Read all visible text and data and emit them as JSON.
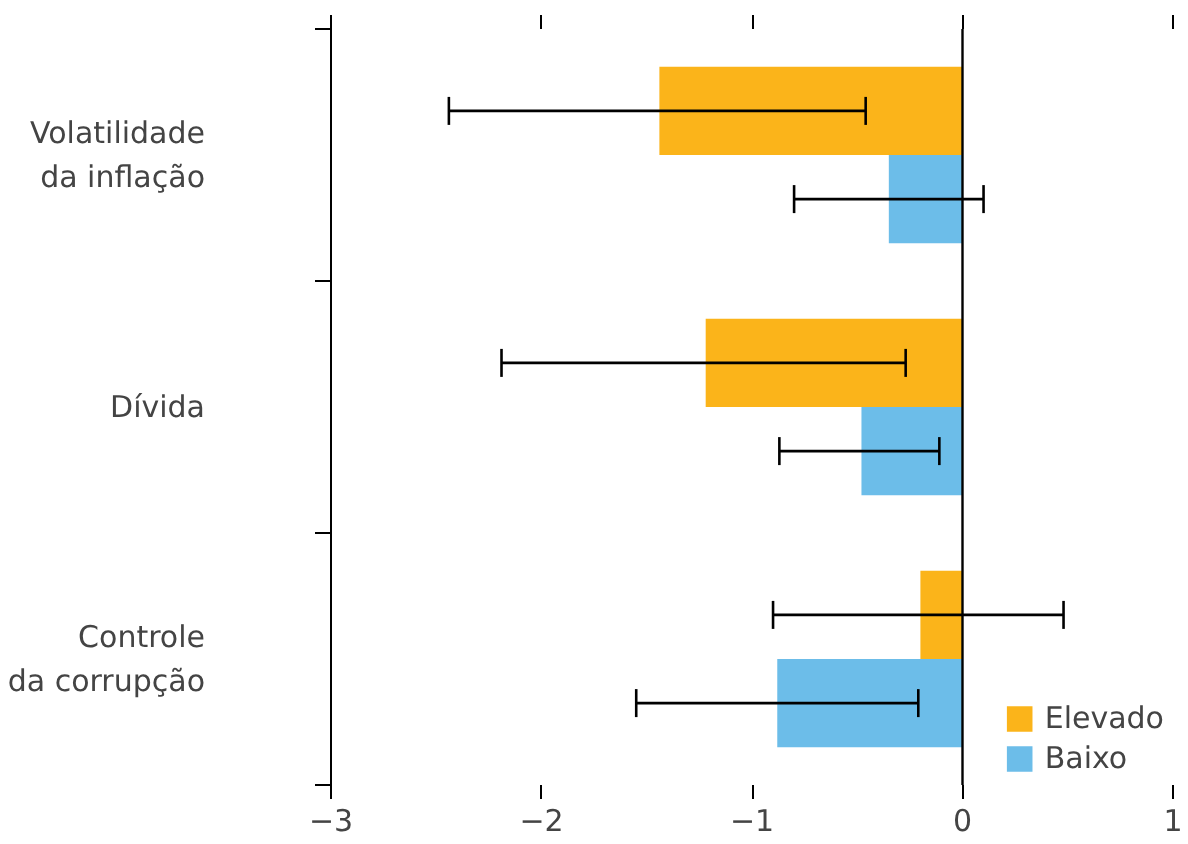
{
  "chart_data": {
    "type": "bar",
    "orientation": "horizontal",
    "categories": [
      "Volatilidade\nda inflação",
      "Dívida",
      "Controle\nda corrupção"
    ],
    "series": [
      {
        "name": "Elevado",
        "color": "#fbb41a",
        "values": [
          -1.44,
          -1.22,
          -0.2
        ],
        "errors": [
          [
            -2.44,
            -0.46
          ],
          [
            -2.19,
            -0.27
          ],
          [
            -0.9,
            0.48
          ]
        ]
      },
      {
        "name": "Baixo",
        "color": "#6cbde9",
        "values": [
          -0.35,
          -0.48,
          -0.88
        ],
        "errors": [
          [
            -0.8,
            0.1
          ],
          [
            -0.87,
            -0.11
          ],
          [
            -1.55,
            -0.21
          ]
        ]
      }
    ],
    "xlim": [
      -3,
      1
    ],
    "xticks": [
      {
        "value": -3,
        "label": "−3"
      },
      {
        "value": -2,
        "label": "−2"
      },
      {
        "value": -1,
        "label": "−1"
      },
      {
        "value": 0,
        "label": "0"
      },
      {
        "value": 1,
        "label": "1"
      }
    ],
    "ref_lines": [
      {
        "axis": "x",
        "value": 0,
        "color": "#000000"
      }
    ],
    "grid": false,
    "legend": "bottom right"
  }
}
